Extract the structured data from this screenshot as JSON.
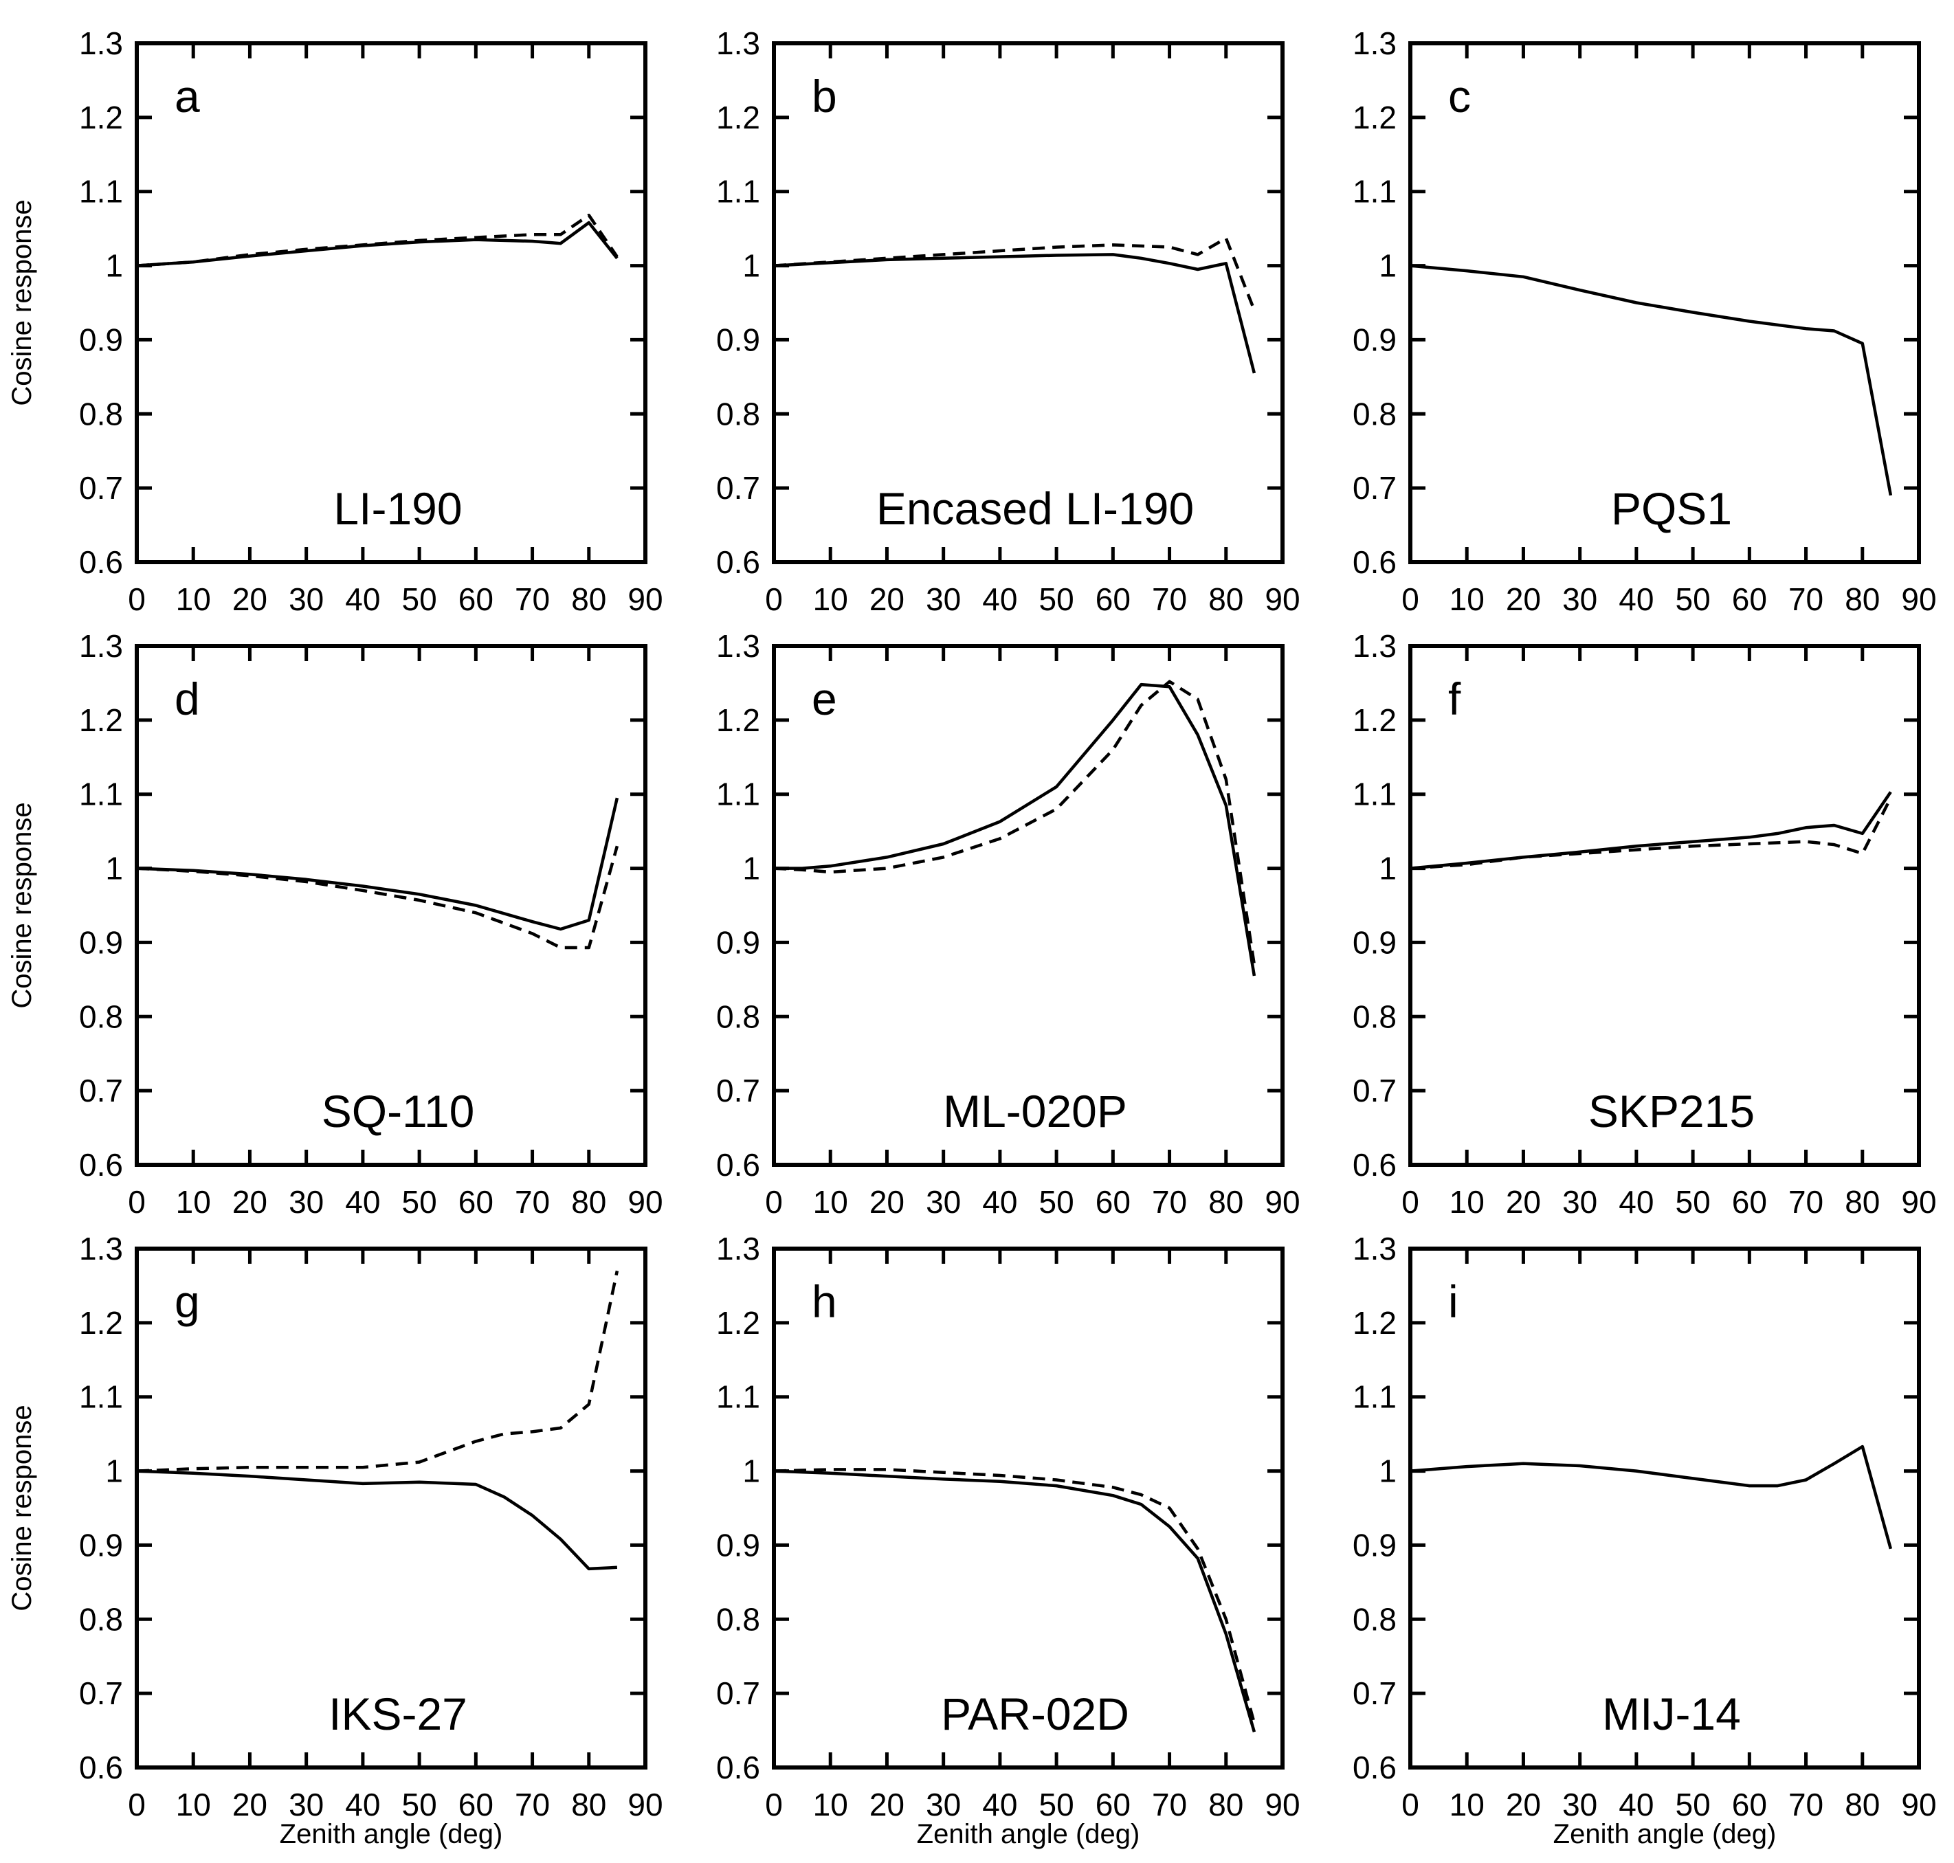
{
  "figure": {
    "colors": {
      "line": "#000000",
      "background": "#ffffff"
    }
  },
  "chart_data": [
    {
      "panel": "a",
      "instrument": "LI-190",
      "type": "line",
      "xlabel": "",
      "ylabel": "Cosine response",
      "xlim": [
        0,
        90
      ],
      "ylim": [
        0.6,
        1.3
      ],
      "xticks": [
        "0",
        "10",
        "20",
        "30",
        "40",
        "50",
        "60",
        "70",
        "80",
        "90"
      ],
      "yticks": [
        "0.6",
        "0.7",
        "0.8",
        "0.9",
        "1",
        "1.1",
        "1.2",
        "1.3"
      ],
      "series": [
        {
          "name": "solid",
          "style": "solid",
          "x": [
            0,
            10,
            20,
            30,
            40,
            50,
            60,
            70,
            75,
            80,
            85
          ],
          "y": [
            1.0,
            1.005,
            1.013,
            1.02,
            1.027,
            1.032,
            1.035,
            1.033,
            1.03,
            1.058,
            1.01
          ]
        },
        {
          "name": "dashed",
          "style": "dashed",
          "x": [
            0,
            10,
            20,
            30,
            40,
            50,
            60,
            70,
            75,
            80,
            85
          ],
          "y": [
            1.0,
            1.005,
            1.015,
            1.022,
            1.028,
            1.034,
            1.038,
            1.042,
            1.042,
            1.068,
            1.012
          ]
        }
      ]
    },
    {
      "panel": "b",
      "instrument": "Encased LI-190",
      "type": "line",
      "xlabel": "",
      "ylabel": "",
      "xlim": [
        0,
        90
      ],
      "ylim": [
        0.6,
        1.3
      ],
      "xticks": [
        "0",
        "10",
        "20",
        "30",
        "40",
        "50",
        "60",
        "70",
        "80",
        "90"
      ],
      "yticks": [
        "0.6",
        "0.7",
        "0.8",
        "0.9",
        "1",
        "1.1",
        "1.2",
        "1.3"
      ],
      "series": [
        {
          "name": "solid",
          "style": "solid",
          "x": [
            0,
            10,
            20,
            30,
            40,
            50,
            60,
            65,
            70,
            75,
            80,
            85
          ],
          "y": [
            1.0,
            1.004,
            1.008,
            1.01,
            1.012,
            1.014,
            1.015,
            1.01,
            1.003,
            0.995,
            1.003,
            0.855
          ]
        },
        {
          "name": "dashed",
          "style": "dashed",
          "x": [
            0,
            10,
            20,
            30,
            40,
            50,
            60,
            70,
            75,
            80,
            85
          ],
          "y": [
            1.0,
            1.005,
            1.01,
            1.015,
            1.02,
            1.025,
            1.028,
            1.025,
            1.015,
            1.037,
            0.94
          ]
        }
      ]
    },
    {
      "panel": "c",
      "instrument": "PQS1",
      "type": "line",
      "xlabel": "",
      "ylabel": "",
      "xlim": [
        0,
        90
      ],
      "ylim": [
        0.6,
        1.3
      ],
      "xticks": [
        "0",
        "10",
        "20",
        "30",
        "40",
        "50",
        "60",
        "70",
        "80",
        "90"
      ],
      "yticks": [
        "0.6",
        "0.7",
        "0.8",
        "0.9",
        "1",
        "1.1",
        "1.2",
        "1.3"
      ],
      "series": [
        {
          "name": "solid",
          "style": "solid",
          "x": [
            0,
            10,
            20,
            30,
            40,
            50,
            60,
            70,
            75,
            80,
            85
          ],
          "y": [
            1.0,
            0.993,
            0.985,
            0.967,
            0.95,
            0.937,
            0.925,
            0.915,
            0.912,
            0.895,
            0.69
          ]
        }
      ]
    },
    {
      "panel": "d",
      "instrument": "SQ-110",
      "type": "line",
      "xlabel": "",
      "ylabel": "Cosine response",
      "xlim": [
        0,
        90
      ],
      "ylim": [
        0.6,
        1.3
      ],
      "xticks": [
        "0",
        "10",
        "20",
        "30",
        "40",
        "50",
        "60",
        "70",
        "80",
        "90"
      ],
      "yticks": [
        "0.6",
        "0.7",
        "0.8",
        "0.9",
        "1",
        "1.1",
        "1.2",
        "1.3"
      ],
      "series": [
        {
          "name": "solid",
          "style": "solid",
          "x": [
            0,
            10,
            20,
            30,
            40,
            50,
            60,
            70,
            75,
            80,
            85
          ],
          "y": [
            1.0,
            0.997,
            0.992,
            0.985,
            0.976,
            0.965,
            0.95,
            0.928,
            0.918,
            0.93,
            1.095
          ]
        },
        {
          "name": "dashed",
          "style": "dashed",
          "x": [
            0,
            10,
            20,
            30,
            40,
            50,
            60,
            70,
            75,
            80,
            85
          ],
          "y": [
            1.0,
            0.996,
            0.99,
            0.982,
            0.97,
            0.957,
            0.94,
            0.912,
            0.893,
            0.893,
            1.03
          ]
        }
      ]
    },
    {
      "panel": "e",
      "instrument": "ML-020P",
      "type": "line",
      "xlabel": "",
      "ylabel": "",
      "xlim": [
        0,
        90
      ],
      "ylim": [
        0.6,
        1.3
      ],
      "xticks": [
        "0",
        "10",
        "20",
        "30",
        "40",
        "50",
        "60",
        "70",
        "80",
        "90"
      ],
      "yticks": [
        "0.6",
        "0.7",
        "0.8",
        "0.9",
        "1",
        "1.1",
        "1.2",
        "1.3"
      ],
      "series": [
        {
          "name": "solid",
          "style": "solid",
          "x": [
            0,
            5,
            10,
            20,
            30,
            40,
            50,
            60,
            65,
            70,
            75,
            80,
            85
          ],
          "y": [
            1.0,
            1.0,
            1.003,
            1.015,
            1.033,
            1.063,
            1.11,
            1.2,
            1.248,
            1.245,
            1.18,
            1.085,
            0.855
          ]
        },
        {
          "name": "dashed",
          "style": "dashed",
          "x": [
            0,
            5,
            10,
            20,
            30,
            40,
            50,
            60,
            65,
            70,
            75,
            80,
            85
          ],
          "y": [
            1.0,
            0.998,
            0.995,
            1.0,
            1.015,
            1.04,
            1.08,
            1.16,
            1.22,
            1.252,
            1.228,
            1.12,
            0.87
          ]
        }
      ]
    },
    {
      "panel": "f",
      "instrument": "SKP215",
      "type": "line",
      "xlabel": "",
      "ylabel": "",
      "xlim": [
        0,
        90
      ],
      "ylim": [
        0.6,
        1.3
      ],
      "xticks": [
        "0",
        "10",
        "20",
        "30",
        "40",
        "50",
        "60",
        "70",
        "80",
        "90"
      ],
      "yticks": [
        "0.6",
        "0.7",
        "0.8",
        "0.9",
        "1",
        "1.1",
        "1.2",
        "1.3"
      ],
      "series": [
        {
          "name": "solid",
          "style": "solid",
          "x": [
            0,
            10,
            20,
            30,
            40,
            50,
            60,
            65,
            70,
            75,
            80,
            85
          ],
          "y": [
            1.0,
            1.007,
            1.015,
            1.022,
            1.03,
            1.036,
            1.042,
            1.047,
            1.055,
            1.058,
            1.047,
            1.103
          ]
        },
        {
          "name": "dashed",
          "style": "dashed",
          "x": [
            0,
            10,
            20,
            30,
            40,
            50,
            60,
            70,
            75,
            80,
            85
          ],
          "y": [
            1.0,
            1.005,
            1.015,
            1.02,
            1.025,
            1.03,
            1.033,
            1.036,
            1.032,
            1.02,
            1.095
          ]
        }
      ]
    },
    {
      "panel": "g",
      "instrument": "IKS-27",
      "type": "line",
      "xlabel": "Zenith angle (deg)",
      "ylabel": "Cosine response",
      "xlim": [
        0,
        90
      ],
      "ylim": [
        0.6,
        1.3
      ],
      "xticks": [
        "0",
        "10",
        "20",
        "30",
        "40",
        "50",
        "60",
        "70",
        "80",
        "90"
      ],
      "yticks": [
        "0.6",
        "0.7",
        "0.8",
        "0.9",
        "1",
        "1.1",
        "1.2",
        "1.3"
      ],
      "series": [
        {
          "name": "solid",
          "style": "solid",
          "x": [
            0,
            10,
            20,
            30,
            40,
            50,
            60,
            65,
            70,
            75,
            80,
            85
          ],
          "y": [
            1.0,
            0.997,
            0.993,
            0.988,
            0.983,
            0.985,
            0.982,
            0.965,
            0.94,
            0.908,
            0.868,
            0.87
          ]
        },
        {
          "name": "dashed",
          "style": "dashed",
          "x": [
            0,
            10,
            20,
            30,
            40,
            50,
            60,
            65,
            70,
            75,
            80,
            85
          ],
          "y": [
            1.0,
            1.003,
            1.005,
            1.005,
            1.005,
            1.012,
            1.04,
            1.05,
            1.053,
            1.058,
            1.09,
            1.27
          ]
        }
      ]
    },
    {
      "panel": "h",
      "instrument": "PAR-02D",
      "type": "line",
      "xlabel": "Zenith angle (deg)",
      "ylabel": "",
      "xlim": [
        0,
        90
      ],
      "ylim": [
        0.6,
        1.3
      ],
      "xticks": [
        "0",
        "10",
        "20",
        "30",
        "40",
        "50",
        "60",
        "70",
        "80",
        "90"
      ],
      "yticks": [
        "0.6",
        "0.7",
        "0.8",
        "0.9",
        "1",
        "1.1",
        "1.2",
        "1.3"
      ],
      "series": [
        {
          "name": "solid",
          "style": "solid",
          "x": [
            0,
            10,
            20,
            30,
            40,
            50,
            60,
            65,
            70,
            75,
            80,
            85
          ],
          "y": [
            1.0,
            0.997,
            0.993,
            0.989,
            0.986,
            0.98,
            0.967,
            0.955,
            0.925,
            0.882,
            0.78,
            0.648
          ]
        },
        {
          "name": "dashed",
          "style": "dashed",
          "x": [
            0,
            10,
            20,
            30,
            40,
            50,
            60,
            65,
            70,
            75,
            80,
            85
          ],
          "y": [
            1.0,
            1.002,
            1.002,
            0.998,
            0.994,
            0.988,
            0.978,
            0.968,
            0.95,
            0.895,
            0.8,
            0.66
          ]
        }
      ]
    },
    {
      "panel": "i",
      "instrument": "MIJ-14",
      "type": "line",
      "xlabel": "Zenith angle (deg)",
      "ylabel": "",
      "xlim": [
        0,
        90
      ],
      "ylim": [
        0.6,
        1.3
      ],
      "xticks": [
        "0",
        "10",
        "20",
        "30",
        "40",
        "50",
        "60",
        "70",
        "80",
        "90"
      ],
      "yticks": [
        "0.6",
        "0.7",
        "0.8",
        "0.9",
        "1",
        "1.1",
        "1.2",
        "1.3"
      ],
      "series": [
        {
          "name": "solid",
          "style": "solid",
          "x": [
            0,
            10,
            20,
            30,
            40,
            50,
            60,
            65,
            70,
            75,
            80,
            85
          ],
          "y": [
            1.0,
            1.006,
            1.01,
            1.007,
            1.0,
            0.99,
            0.98,
            0.98,
            0.988,
            1.01,
            1.033,
            0.895
          ]
        }
      ]
    }
  ]
}
